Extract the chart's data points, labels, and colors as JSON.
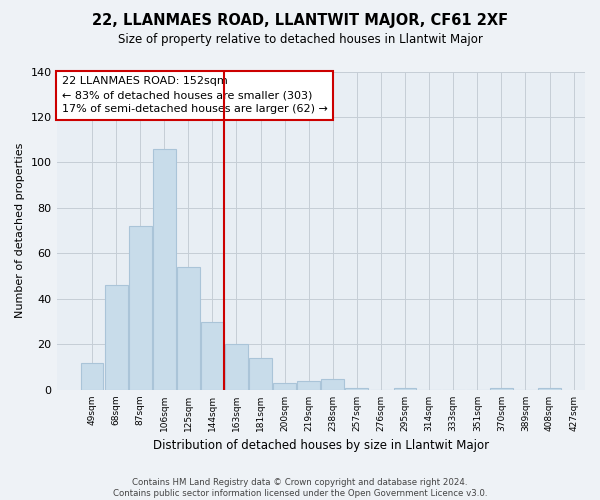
{
  "title": "22, LLANMAES ROAD, LLANTWIT MAJOR, CF61 2XF",
  "subtitle": "Size of property relative to detached houses in Llantwit Major",
  "xlabel": "Distribution of detached houses by size in Llantwit Major",
  "ylabel": "Number of detached properties",
  "bar_values": [
    12,
    46,
    72,
    106,
    54,
    30,
    20,
    14,
    3,
    4,
    5,
    1,
    0,
    1,
    0,
    0,
    0,
    1,
    0,
    1
  ],
  "bar_labels": [
    "49sqm",
    "68sqm",
    "87sqm",
    "106sqm",
    "125sqm",
    "144sqm",
    "163sqm",
    "181sqm",
    "200sqm",
    "219sqm",
    "238sqm",
    "257sqm",
    "276sqm",
    "295sqm",
    "314sqm",
    "333sqm",
    "351sqm",
    "370sqm",
    "389sqm",
    "408sqm",
    "427sqm"
  ],
  "bar_color": "#c8dcea",
  "bar_edge_color": "#aac4d8",
  "vline_x": 5.5,
  "vline_color": "#cc0000",
  "annotation_line1": "22 LLANMAES ROAD: 152sqm",
  "annotation_line2": "← 83% of detached houses are smaller (303)",
  "annotation_line3": "17% of semi-detached houses are larger (62) →",
  "annotation_box_color": "#ffffff",
  "annotation_box_edge_color": "#cc0000",
  "ylim": [
    0,
    140
  ],
  "yticks": [
    0,
    20,
    40,
    60,
    80,
    100,
    120,
    140
  ],
  "footer": "Contains HM Land Registry data © Crown copyright and database right 2024.\nContains public sector information licensed under the Open Government Licence v3.0.",
  "bg_color": "#eef2f6",
  "plot_bg_color": "#e8eef4",
  "grid_color": "#c5cdd6"
}
